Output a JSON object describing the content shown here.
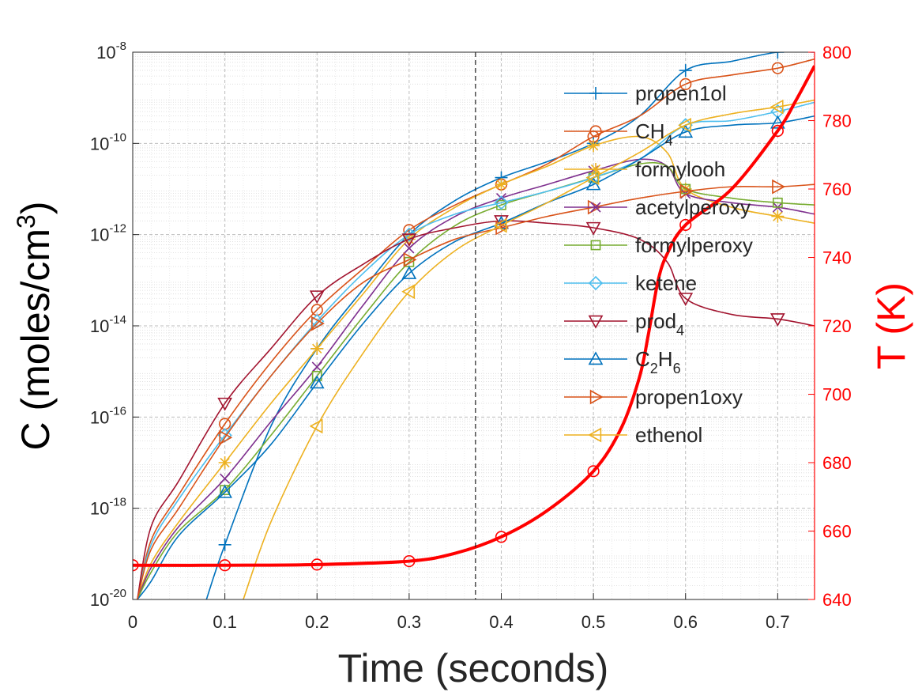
{
  "chart_data": {
    "type": "line",
    "xlabel": "Time (seconds)",
    "ylabel_left": "C (moles/cm",
    "ylabel_left_sup": "3",
    "ylabel_left_close": ")",
    "ylabel_right": "T (K)",
    "x_range": [
      0,
      0.74
    ],
    "y_left_scale": "log",
    "y_left_range_exp": [
      -20,
      -8
    ],
    "y_right_range": [
      640,
      800
    ],
    "x_ticks": [
      {
        "value": 0,
        "label": "0"
      },
      {
        "value": 0.1,
        "label": "0.1"
      },
      {
        "value": 0.2,
        "label": "0.2"
      },
      {
        "value": 0.3,
        "label": "0.3"
      },
      {
        "value": 0.4,
        "label": "0.4"
      },
      {
        "value": 0.5,
        "label": "0.5"
      },
      {
        "value": 0.6,
        "label": "0.6"
      },
      {
        "value": 0.7,
        "label": "0.7"
      }
    ],
    "y_left_ticks": [
      {
        "exp": -20,
        "base": "10",
        "sup": "-20"
      },
      {
        "exp": -18,
        "base": "10",
        "sup": "-18"
      },
      {
        "exp": -16,
        "base": "10",
        "sup": "-16"
      },
      {
        "exp": -14,
        "base": "10",
        "sup": "-14"
      },
      {
        "exp": -12,
        "base": "10",
        "sup": "-12"
      },
      {
        "exp": -10,
        "base": "10",
        "sup": "-10"
      },
      {
        "exp": -8,
        "base": "10",
        "sup": "-8"
      }
    ],
    "y_right_ticks": [
      {
        "value": 640,
        "label": "640"
      },
      {
        "value": 660,
        "label": "660"
      },
      {
        "value": 680,
        "label": "680"
      },
      {
        "value": 700,
        "label": "700"
      },
      {
        "value": 720,
        "label": "720"
      },
      {
        "value": 740,
        "label": "740"
      },
      {
        "value": 760,
        "label": "760"
      },
      {
        "value": 780,
        "label": "780"
      },
      {
        "value": 800,
        "label": "800"
      }
    ],
    "vline_x": 0.372,
    "grid": true,
    "legend_position": "top-right",
    "series": [
      {
        "name": "propen1ol",
        "label": [
          {
            "t": "propen1ol"
          }
        ],
        "color": "#0072BD",
        "marker": "plus",
        "x": [
          0.08,
          0.1,
          0.15,
          0.2,
          0.25,
          0.3,
          0.35,
          0.4,
          0.45,
          0.5,
          0.55,
          0.6,
          0.65,
          0.7,
          0.74
        ],
        "y": [
          -20.0,
          -18.8,
          -16.2,
          -14.5,
          -13.2,
          -12.0,
          -11.25,
          -10.75,
          -10.4,
          -10.0,
          -9.4,
          -8.4,
          -8.2,
          -8.0,
          -8.0
        ]
      },
      {
        "name": "CH4",
        "label": [
          {
            "t": "CH"
          },
          {
            "t": "4",
            "sub": true
          }
        ],
        "color": "#D95319",
        "marker": "circle",
        "x": [
          0.005,
          0.02,
          0.05,
          0.1,
          0.15,
          0.2,
          0.25,
          0.3,
          0.35,
          0.4,
          0.45,
          0.5,
          0.55,
          0.6,
          0.65,
          0.7,
          0.74
        ],
        "y": [
          -20.0,
          -18.7,
          -17.7,
          -16.15,
          -14.8,
          -13.65,
          -12.75,
          -11.9,
          -11.35,
          -10.9,
          -10.45,
          -9.85,
          -9.4,
          -8.7,
          -8.5,
          -8.35,
          -8.15
        ]
      },
      {
        "name": "formylooh",
        "label": [
          {
            "t": "formylooh"
          }
        ],
        "color": "#EDB120",
        "marker": "star",
        "x": [
          0.005,
          0.02,
          0.05,
          0.1,
          0.15,
          0.2,
          0.25,
          0.3,
          0.35,
          0.4,
          0.45,
          0.5,
          0.55,
          0.58,
          0.6,
          0.65,
          0.7,
          0.74
        ],
        "y": [
          -20.0,
          -19.2,
          -18.3,
          -17.0,
          -15.7,
          -14.5,
          -13.3,
          -12.1,
          -11.4,
          -10.9,
          -10.5,
          -10.05,
          -9.85,
          -10.2,
          -11.0,
          -11.4,
          -11.6,
          -11.75
        ]
      },
      {
        "name": "acetylperoxy",
        "label": [
          {
            "t": "acetylperoxy"
          }
        ],
        "color": "#7E2F8E",
        "marker": "x",
        "x": [
          0.005,
          0.02,
          0.05,
          0.1,
          0.15,
          0.2,
          0.25,
          0.3,
          0.35,
          0.4,
          0.45,
          0.5,
          0.55,
          0.58,
          0.6,
          0.65,
          0.7,
          0.74
        ],
        "y": [
          -20.0,
          -19.3,
          -18.4,
          -17.35,
          -16.1,
          -14.9,
          -13.55,
          -12.3,
          -11.6,
          -11.2,
          -10.9,
          -10.6,
          -10.35,
          -10.5,
          -11.1,
          -11.3,
          -11.4,
          -11.55
        ]
      },
      {
        "name": "formylperoxy",
        "label": [
          {
            "t": "formylperoxy"
          }
        ],
        "color": "#77AC30",
        "marker": "square",
        "x": [
          0.005,
          0.02,
          0.05,
          0.1,
          0.15,
          0.2,
          0.25,
          0.3,
          0.35,
          0.4,
          0.45,
          0.5,
          0.55,
          0.58,
          0.6,
          0.65,
          0.7,
          0.74
        ],
        "y": [
          -20.0,
          -19.4,
          -18.5,
          -17.6,
          -16.4,
          -15.1,
          -13.8,
          -12.6,
          -11.8,
          -11.35,
          -11.05,
          -10.75,
          -10.45,
          -10.5,
          -11.0,
          -11.2,
          -11.3,
          -11.35
        ]
      },
      {
        "name": "ketene",
        "label": [
          {
            "t": "ketene"
          }
        ],
        "color": "#4DBEEE",
        "marker": "diamond",
        "x": [
          0.005,
          0.02,
          0.05,
          0.1,
          0.15,
          0.2,
          0.25,
          0.3,
          0.35,
          0.4,
          0.45,
          0.5,
          0.55,
          0.6,
          0.65,
          0.7,
          0.74
        ],
        "y": [
          -20.0,
          -18.8,
          -17.8,
          -16.4,
          -15.1,
          -13.9,
          -12.85,
          -12.0,
          -11.55,
          -11.3,
          -11.05,
          -10.75,
          -10.35,
          -9.6,
          -9.5,
          -9.3,
          -9.1
        ]
      },
      {
        "name": "prod4",
        "label": [
          {
            "t": "prod"
          },
          {
            "t": "4",
            "sub": true
          }
        ],
        "color": "#A2142F",
        "marker": "triangle-down",
        "x": [
          0.005,
          0.02,
          0.05,
          0.1,
          0.15,
          0.2,
          0.25,
          0.3,
          0.35,
          0.4,
          0.45,
          0.5,
          0.55,
          0.58,
          0.6,
          0.65,
          0.7,
          0.74
        ],
        "y": [
          -20.0,
          -18.4,
          -17.4,
          -15.7,
          -14.5,
          -13.35,
          -12.65,
          -12.1,
          -11.85,
          -11.7,
          -11.75,
          -11.85,
          -12.1,
          -12.6,
          -13.4,
          -13.75,
          -13.85,
          -14.0
        ]
      },
      {
        "name": "C2H6",
        "label": [
          {
            "t": "C"
          },
          {
            "t": "2",
            "sub": true
          },
          {
            "t": "H"
          },
          {
            "t": "6",
            "sub": true
          }
        ],
        "color": "#0072BD",
        "marker": "triangle-up",
        "x": [
          0.005,
          0.02,
          0.05,
          0.1,
          0.15,
          0.2,
          0.25,
          0.3,
          0.35,
          0.4,
          0.45,
          0.5,
          0.55,
          0.6,
          0.65,
          0.7,
          0.74
        ],
        "y": [
          -20.0,
          -19.6,
          -18.6,
          -17.65,
          -16.6,
          -15.25,
          -13.95,
          -12.85,
          -12.15,
          -11.75,
          -11.3,
          -10.9,
          -10.35,
          -9.75,
          -9.6,
          -9.55,
          -9.4
        ]
      },
      {
        "name": "propen1oxy",
        "label": [
          {
            "t": "propen1oxy"
          }
        ],
        "color": "#D95319",
        "marker": "triangle-right",
        "x": [
          0.005,
          0.02,
          0.05,
          0.1,
          0.15,
          0.2,
          0.25,
          0.3,
          0.35,
          0.4,
          0.45,
          0.5,
          0.55,
          0.6,
          0.65,
          0.7,
          0.74
        ],
        "y": [
          -20.0,
          -18.9,
          -18.0,
          -16.45,
          -15.1,
          -13.95,
          -13.05,
          -12.55,
          -12.1,
          -11.85,
          -11.6,
          -11.4,
          -11.2,
          -11.05,
          -10.95,
          -10.95,
          -10.9
        ]
      },
      {
        "name": "ethenol",
        "label": [
          {
            "t": "ethenol"
          }
        ],
        "color": "#EDB120",
        "marker": "triangle-left",
        "x": [
          0.12,
          0.15,
          0.2,
          0.25,
          0.3,
          0.35,
          0.4,
          0.45,
          0.5,
          0.55,
          0.6,
          0.65,
          0.7,
          0.74
        ],
        "y": [
          -20.0,
          -18.3,
          -16.2,
          -14.6,
          -13.25,
          -12.35,
          -11.8,
          -11.3,
          -10.75,
          -10.2,
          -9.6,
          -9.35,
          -9.2,
          -9.05
        ]
      }
    ],
    "temperature": {
      "name": "T",
      "color": "#FF0000",
      "marker": "circle",
      "x": [
        0,
        0.1,
        0.2,
        0.3,
        0.35,
        0.4,
        0.45,
        0.5,
        0.53,
        0.55,
        0.56,
        0.57,
        0.58,
        0.6,
        0.65,
        0.7,
        0.72,
        0.74
      ],
      "y": [
        650,
        650,
        650.2,
        651.2,
        653.5,
        658.3,
        666,
        677.5,
        690,
        705,
        718,
        733,
        741,
        749.5,
        760,
        777,
        786,
        796
      ]
    }
  }
}
